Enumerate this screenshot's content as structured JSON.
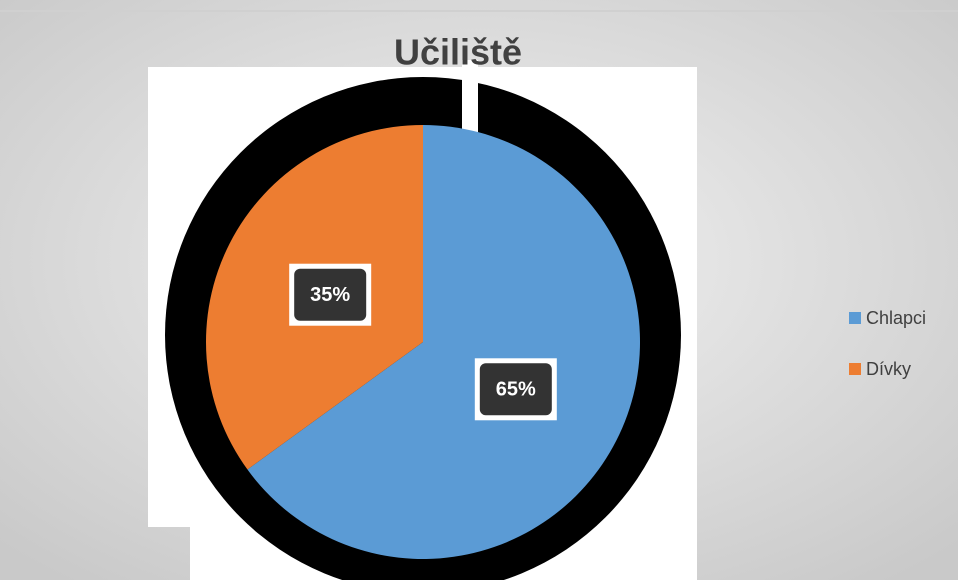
{
  "chart_data": {
    "type": "pie",
    "title": "Učiliště",
    "categories": [
      "Chlapci",
      "Dívky"
    ],
    "values": [
      65,
      35
    ],
    "value_labels": [
      "65%",
      "35%"
    ],
    "colors": [
      "#5b9bd5",
      "#ed7d31"
    ],
    "legend": "right"
  }
}
